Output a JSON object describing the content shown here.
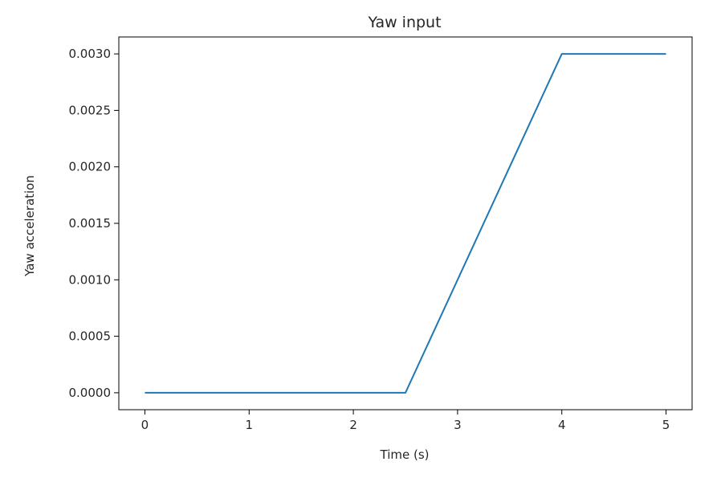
{
  "chart_data": {
    "type": "line",
    "title": "Yaw input",
    "xlabel": "Time (s)",
    "ylabel": "Yaw acceleration",
    "xlim": [
      -0.25,
      5.25
    ],
    "ylim": [
      -0.00015,
      0.00315
    ],
    "xticks": [
      0,
      1,
      2,
      3,
      4,
      5
    ],
    "xtick_labels": [
      "0",
      "1",
      "2",
      "3",
      "4",
      "5"
    ],
    "yticks": [
      0,
      0.0005,
      0.001,
      0.0015,
      0.002,
      0.0025,
      0.003
    ],
    "ytick_labels": [
      "0.0000",
      "0.0005",
      "0.0010",
      "0.0015",
      "0.0020",
      "0.0025",
      "0.0030"
    ],
    "grid": false,
    "series": [
      {
        "color": "#1f77b4",
        "x": [
          0,
          2.5,
          4,
          5
        ],
        "y": [
          0,
          0,
          0.003,
          0.003
        ]
      }
    ]
  }
}
